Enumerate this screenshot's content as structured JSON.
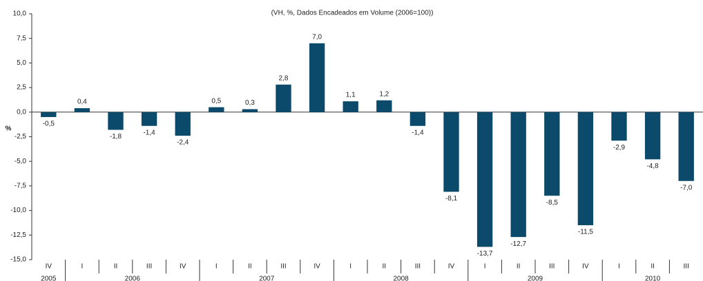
{
  "chart_data": {
    "type": "bar",
    "subtitle": "(VH, %, Dados Encadeados em Volume (2006=100))",
    "ylabel": "%",
    "categories": [
      "IV",
      "I",
      "II",
      "III",
      "IV",
      "I",
      "II",
      "III",
      "IV",
      "I",
      "II",
      "III",
      "IV",
      "I",
      "II",
      "III",
      "IV",
      "I",
      "II",
      "III"
    ],
    "years": [
      "2005",
      "2006",
      "2007",
      "2008",
      "2009",
      "2010"
    ],
    "values": [
      -0.5,
      0.4,
      -1.8,
      -1.4,
      -2.4,
      0.5,
      0.3,
      2.8,
      7.0,
      1.1,
      1.2,
      -1.4,
      -8.1,
      -13.7,
      -12.7,
      -8.5,
      -11.5,
      -2.9,
      -4.8,
      -7.0
    ],
    "value_labels": [
      "-0,5",
      "0,4",
      "-1,8",
      "-1,4",
      "-2,4",
      "0,5",
      "0,3",
      "2,8",
      "7,0",
      "1,1",
      "1,2",
      "-1,4",
      "-8,1",
      "-13,7",
      "-12,7",
      "-8,5",
      "-11,5",
      "-2,9",
      "-4,8",
      "-7,0"
    ],
    "color": "#0b4a6b",
    "ylim": [
      -15,
      10
    ],
    "yticks": [
      {
        "value": 10,
        "label": "10,0"
      },
      {
        "value": 7.5,
        "label": "7,5"
      },
      {
        "value": 5,
        "label": "5,0"
      },
      {
        "value": 2.5,
        "label": "2,5"
      },
      {
        "value": 0,
        "label": "0,0"
      },
      {
        "value": -2.5,
        "label": "-2,5"
      },
      {
        "value": -5,
        "label": "-5,0"
      },
      {
        "value": -7.5,
        "label": "-7,5"
      },
      {
        "value": -10,
        "label": "-10,0"
      },
      {
        "value": -12.5,
        "label": "-12,5"
      },
      {
        "value": -15,
        "label": "-15,0"
      }
    ],
    "grid": false
  }
}
